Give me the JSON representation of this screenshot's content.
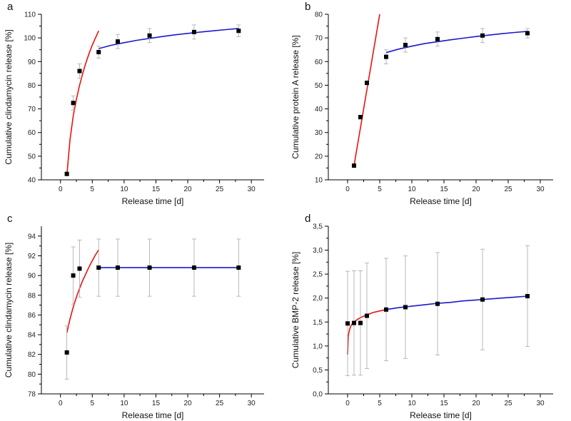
{
  "colors": {
    "fit_early": "#e8140c",
    "fit_late": "#1a1acc",
    "marker": "#000000",
    "errorbar": "#a8a8a8",
    "axis": "#000000"
  },
  "chart_data": [
    {
      "panel": "a",
      "type": "scatter",
      "xlabel": "Release time [d]",
      "ylabel": "Cumulative clindamycin release [%]",
      "xlim": [
        -3,
        32
      ],
      "ylim": [
        40,
        110
      ],
      "xticks": [
        0,
        5,
        10,
        15,
        20,
        25,
        30
      ],
      "xtick_labels": [
        "0",
        "5",
        "10",
        "15",
        "20",
        "25",
        "30"
      ],
      "yticks": [
        40,
        50,
        60,
        70,
        80,
        90,
        100,
        110
      ],
      "ytick_labels": [
        "40",
        "50",
        "60",
        "70",
        "80",
        "90",
        "100",
        "110"
      ],
      "points": [
        {
          "x": 1,
          "y": 42.5,
          "err": 0.6
        },
        {
          "x": 2,
          "y": 72.5,
          "err": 3.0
        },
        {
          "x": 3,
          "y": 86,
          "err": 3.0
        },
        {
          "x": 6,
          "y": 94,
          "err": 2.5
        },
        {
          "x": 9,
          "y": 98.5,
          "err": 3.0
        },
        {
          "x": 14,
          "y": 101,
          "err": 3.0
        },
        {
          "x": 21,
          "y": 102.5,
          "err": 3.0
        },
        {
          "x": 28,
          "y": 103,
          "err": 2.5
        }
      ],
      "fits": [
        {
          "name": "early",
          "color": "#e8140c",
          "x": [
            1,
            1.5,
            2,
            2.5,
            3,
            3.5,
            4,
            4.5,
            5,
            5.5,
            6
          ],
          "y": [
            42,
            57,
            67,
            74,
            80,
            85,
            89.5,
            93.5,
            97,
            100,
            103
          ]
        },
        {
          "name": "late",
          "color": "#1a1acc",
          "x": [
            6,
            8,
            10,
            12,
            14,
            16,
            18,
            20,
            22,
            24,
            26,
            28
          ],
          "y": [
            95.5,
            96.9,
            98.0,
            99.0,
            99.8,
            100.6,
            101.3,
            101.9,
            102.5,
            103.0,
            103.5,
            104.0
          ]
        }
      ]
    },
    {
      "panel": "b",
      "type": "scatter",
      "xlabel": "Release time [d]",
      "ylabel": "Cumulative protein A release [%]",
      "xlim": [
        -3,
        32
      ],
      "ylim": [
        10,
        80
      ],
      "xticks": [
        0,
        5,
        10,
        15,
        20,
        25,
        30
      ],
      "xtick_labels": [
        "0",
        "5",
        "10",
        "15",
        "20",
        "25",
        "30"
      ],
      "yticks": [
        10,
        20,
        30,
        40,
        50,
        60,
        70,
        80
      ],
      "ytick_labels": [
        "10",
        "20",
        "30",
        "40",
        "50",
        "60",
        "70",
        "80"
      ],
      "points": [
        {
          "x": 1,
          "y": 16,
          "err": 0.5
        },
        {
          "x": 2,
          "y": 36.5,
          "err": 0.8
        },
        {
          "x": 3,
          "y": 51,
          "err": 0.8
        },
        {
          "x": 6,
          "y": 62,
          "err": 3.0
        },
        {
          "x": 9,
          "y": 67,
          "err": 3.0
        },
        {
          "x": 14,
          "y": 69.5,
          "err": 3.0
        },
        {
          "x": 21,
          "y": 71,
          "err": 3.0
        },
        {
          "x": 28,
          "y": 72,
          "err": 2.0
        }
      ],
      "fits": [
        {
          "name": "early",
          "color": "#e8140c",
          "x": [
            1,
            5
          ],
          "y": [
            16,
            80
          ]
        },
        {
          "name": "late",
          "color": "#1a1acc",
          "x": [
            6,
            8,
            10,
            12,
            14,
            16,
            18,
            20,
            22,
            24,
            26,
            28
          ],
          "y": [
            63.8,
            65.3,
            66.5,
            67.6,
            68.4,
            69.2,
            69.9,
            70.6,
            71.2,
            71.8,
            72.3,
            72.8
          ]
        }
      ]
    },
    {
      "panel": "c",
      "type": "scatter",
      "xlabel": "Release time [d]",
      "ylabel": "Cumulative clindamycin release [%]",
      "xlim": [
        -3,
        32
      ],
      "ylim": [
        78,
        95
      ],
      "xticks": [
        0,
        5,
        10,
        15,
        20,
        25,
        30
      ],
      "xtick_labels": [
        "0",
        "5",
        "10",
        "15",
        "20",
        "25",
        "30"
      ],
      "yticks": [
        78,
        80,
        82,
        84,
        86,
        88,
        90,
        92,
        94
      ],
      "ytick_labels": [
        "78",
        "80",
        "82",
        "84",
        "86",
        "88",
        "90",
        "92",
        "94"
      ],
      "points": [
        {
          "x": 1,
          "y": 82.2,
          "err": 2.7
        },
        {
          "x": 2,
          "y": 90,
          "err": 2.9
        },
        {
          "x": 3,
          "y": 90.7,
          "err": 2.9
        },
        {
          "x": 6,
          "y": 90.8,
          "err": 2.9
        },
        {
          "x": 9,
          "y": 90.8,
          "err": 2.9
        },
        {
          "x": 14,
          "y": 90.8,
          "err": 2.9
        },
        {
          "x": 21,
          "y": 90.8,
          "err": 2.9
        },
        {
          "x": 28,
          "y": 90.8,
          "err": 2.9
        }
      ],
      "fits": [
        {
          "name": "early",
          "color": "#e8140c",
          "x": [
            1,
            1.5,
            2,
            2.5,
            3,
            3.5,
            4,
            4.5,
            5,
            5.5,
            6
          ],
          "y": [
            84.2,
            85.6,
            86.8,
            87.8,
            88.7,
            89.5,
            90.2,
            90.9,
            91.5,
            92.1,
            92.6
          ]
        },
        {
          "name": "late",
          "color": "#1a1acc",
          "x": [
            6,
            28
          ],
          "y": [
            90.8,
            90.8
          ]
        }
      ]
    },
    {
      "panel": "d",
      "type": "scatter",
      "xlabel": "Release time [d]",
      "ylabel": "Cumulative BMP-2 release [%]",
      "xlim": [
        -3,
        32
      ],
      "ylim": [
        0,
        3.5
      ],
      "xticks": [
        0,
        5,
        10,
        15,
        20,
        25,
        30
      ],
      "xtick_labels": [
        "0",
        "5",
        "10",
        "15",
        "20",
        "25",
        "30"
      ],
      "yticks": [
        0,
        0.5,
        1.0,
        1.5,
        2.0,
        2.5,
        3.0,
        3.5
      ],
      "ytick_labels": [
        "0,0",
        "0,5",
        "1,0",
        "1,5",
        "2,0",
        "2,5",
        "3,0",
        "3,5"
      ],
      "points": [
        {
          "x": 0,
          "y": 1.47,
          "err": 1.09
        },
        {
          "x": 1,
          "y": 1.48,
          "err": 1.09
        },
        {
          "x": 2,
          "y": 1.48,
          "err": 1.09
        },
        {
          "x": 3,
          "y": 1.63,
          "err": 1.1
        },
        {
          "x": 6,
          "y": 1.76,
          "err": 1.07
        },
        {
          "x": 9,
          "y": 1.81,
          "err": 1.07
        },
        {
          "x": 14,
          "y": 1.88,
          "err": 1.07
        },
        {
          "x": 21,
          "y": 1.97,
          "err": 1.05
        },
        {
          "x": 28,
          "y": 2.04,
          "err": 1.05
        }
      ],
      "fits": [
        {
          "name": "early",
          "color": "#e8140c",
          "x": [
            0,
            0.1,
            0.25,
            0.5,
            0.75,
            1,
            1.5,
            2,
            3,
            4,
            5,
            6
          ],
          "y": [
            0.82,
            1.2,
            1.32,
            1.42,
            1.47,
            1.5,
            1.55,
            1.59,
            1.65,
            1.7,
            1.73,
            1.76
          ]
        },
        {
          "name": "late",
          "color": "#1a1acc",
          "x": [
            6,
            8,
            10,
            12,
            14,
            16,
            18,
            20,
            22,
            24,
            26,
            28
          ],
          "y": [
            1.76,
            1.8,
            1.83,
            1.86,
            1.89,
            1.91,
            1.94,
            1.96,
            1.98,
            2.0,
            2.02,
            2.04
          ]
        }
      ]
    }
  ]
}
